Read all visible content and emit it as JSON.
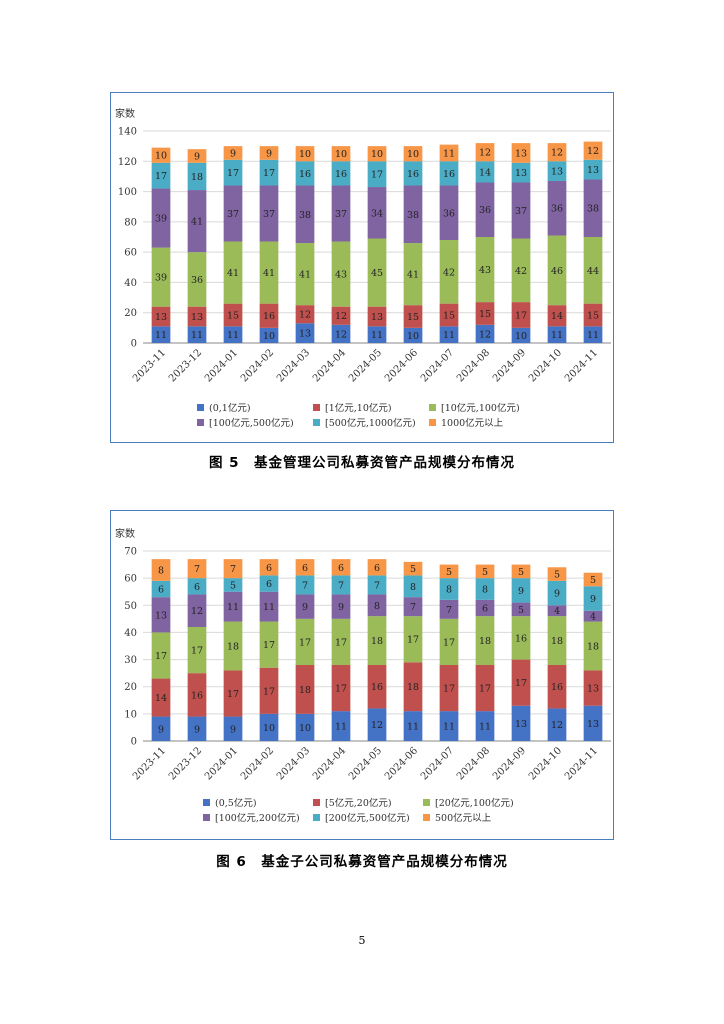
{
  "figures": [
    {
      "caption": "图 5　基金管理公司私募资管产品规模分布情况"
    },
    {
      "caption": "图 6　基金子公司私募资管产品规模分布情况"
    }
  ],
  "page_number": "5",
  "chart_data": [
    {
      "type": "bar",
      "stacked": true,
      "ylabel": "家数",
      "ylim": [
        0,
        140
      ],
      "yticks": [
        0,
        20,
        40,
        60,
        80,
        100,
        120,
        140
      ],
      "grid": true,
      "legend_position": "bottom",
      "categories": [
        "2023-11",
        "2023-12",
        "2024-01",
        "2024-02",
        "2024-03",
        "2024-04",
        "2024-05",
        "2024-06",
        "2024-07",
        "2024-08",
        "2024-09",
        "2024-10",
        "2024-11"
      ],
      "series": [
        {
          "name": "(0,1亿元)",
          "color": "#4472c4",
          "values": [
            11,
            11,
            11,
            10,
            13,
            12,
            11,
            10,
            11,
            12,
            10,
            11,
            11
          ]
        },
        {
          "name": "[1亿元,10亿元)",
          "color": "#c0504d",
          "values": [
            13,
            13,
            15,
            16,
            12,
            12,
            13,
            15,
            15,
            15,
            17,
            14,
            15
          ]
        },
        {
          "name": "[10亿元,100亿元)",
          "color": "#9bbb59",
          "values": [
            39,
            36,
            41,
            41,
            41,
            43,
            45,
            41,
            42,
            43,
            42,
            46,
            44
          ]
        },
        {
          "name": "[100亿元,500亿元)",
          "color": "#8064a2",
          "values": [
            39,
            41,
            37,
            37,
            38,
            37,
            34,
            38,
            36,
            36,
            37,
            36,
            38
          ]
        },
        {
          "name": "[500亿元,1000亿元)",
          "color": "#4bacc6",
          "values": [
            17,
            18,
            17,
            17,
            16,
            16,
            17,
            16,
            16,
            14,
            13,
            13,
            13
          ]
        },
        {
          "name": "1000亿元以上",
          "color": "#f79646",
          "values": [
            10,
            9,
            9,
            9,
            10,
            10,
            10,
            10,
            11,
            12,
            13,
            12,
            12
          ]
        }
      ]
    },
    {
      "type": "bar",
      "stacked": true,
      "ylabel": "家数",
      "ylim": [
        0,
        70
      ],
      "yticks": [
        0,
        10,
        20,
        30,
        40,
        50,
        60,
        70
      ],
      "grid": true,
      "legend_position": "bottom",
      "categories": [
        "2023-11",
        "2023-12",
        "2024-01",
        "2024-02",
        "2024-03",
        "2024-04",
        "2024-05",
        "2024-06",
        "2024-07",
        "2024-08",
        "2024-09",
        "2024-10",
        "2024-11"
      ],
      "series": [
        {
          "name": "(0,5亿元)",
          "color": "#4472c4",
          "values": [
            9,
            9,
            9,
            10,
            10,
            11,
            12,
            11,
            11,
            11,
            13,
            12,
            13
          ]
        },
        {
          "name": "[5亿元,20亿元)",
          "color": "#c0504d",
          "values": [
            14,
            16,
            17,
            17,
            18,
            17,
            16,
            18,
            17,
            17,
            17,
            16,
            13
          ]
        },
        {
          "name": "[20亿元,100亿元)",
          "color": "#9bbb59",
          "values": [
            17,
            17,
            18,
            17,
            17,
            17,
            18,
            17,
            17,
            18,
            16,
            18,
            18
          ]
        },
        {
          "name": "[100亿元,200亿元)",
          "color": "#8064a2",
          "values": [
            13,
            12,
            11,
            11,
            9,
            9,
            8,
            7,
            7,
            6,
            5,
            4,
            4
          ]
        },
        {
          "name": "[200亿元,500亿元)",
          "color": "#4bacc6",
          "values": [
            6,
            6,
            5,
            6,
            7,
            7,
            7,
            8,
            8,
            8,
            9,
            9,
            9
          ]
        },
        {
          "name": "500亿元以上",
          "color": "#f79646",
          "values": [
            8,
            7,
            7,
            6,
            6,
            6,
            6,
            5,
            5,
            5,
            5,
            5,
            5
          ]
        }
      ]
    }
  ]
}
